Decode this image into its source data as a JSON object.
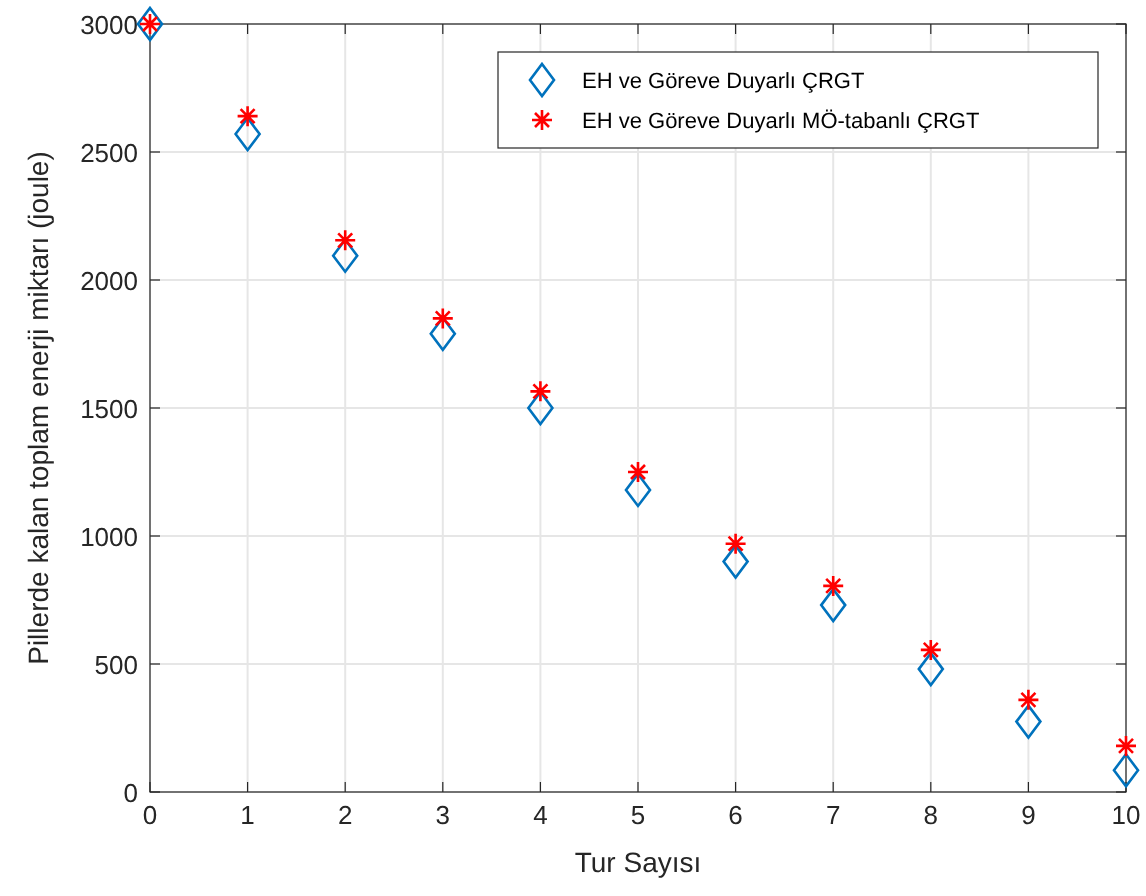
{
  "chart_data": {
    "type": "scatter",
    "xlabel": "Tur Sayısı",
    "ylabel": "Pillerde kalan toplam enerji miktarı (joule)",
    "x": [
      0,
      1,
      2,
      3,
      4,
      5,
      6,
      7,
      8,
      9,
      10
    ],
    "series": [
      {
        "name": "EH ve Göreve Duyarlı ÇRGT",
        "color": "#0072bd",
        "marker": "diamond",
        "values": [
          3000,
          2570,
          2095,
          1790,
          1500,
          1180,
          900,
          730,
          480,
          275,
          85
        ]
      },
      {
        "name": "EH ve Göreve Duyarlı MÖ-tabanlı ÇRGT",
        "color": "#ff0000",
        "marker": "cross",
        "values": [
          3000,
          2640,
          2155,
          1850,
          1565,
          1250,
          970,
          805,
          555,
          360,
          180
        ]
      }
    ],
    "xlim": [
      0,
      10
    ],
    "xticks": [
      0,
      1,
      2,
      3,
      4,
      5,
      6,
      7,
      8,
      9,
      10
    ],
    "ylim": [
      0,
      3000
    ],
    "yticks": [
      0,
      500,
      1000,
      1500,
      2000,
      2500,
      3000
    ],
    "grid": true,
    "legend": "top right"
  }
}
